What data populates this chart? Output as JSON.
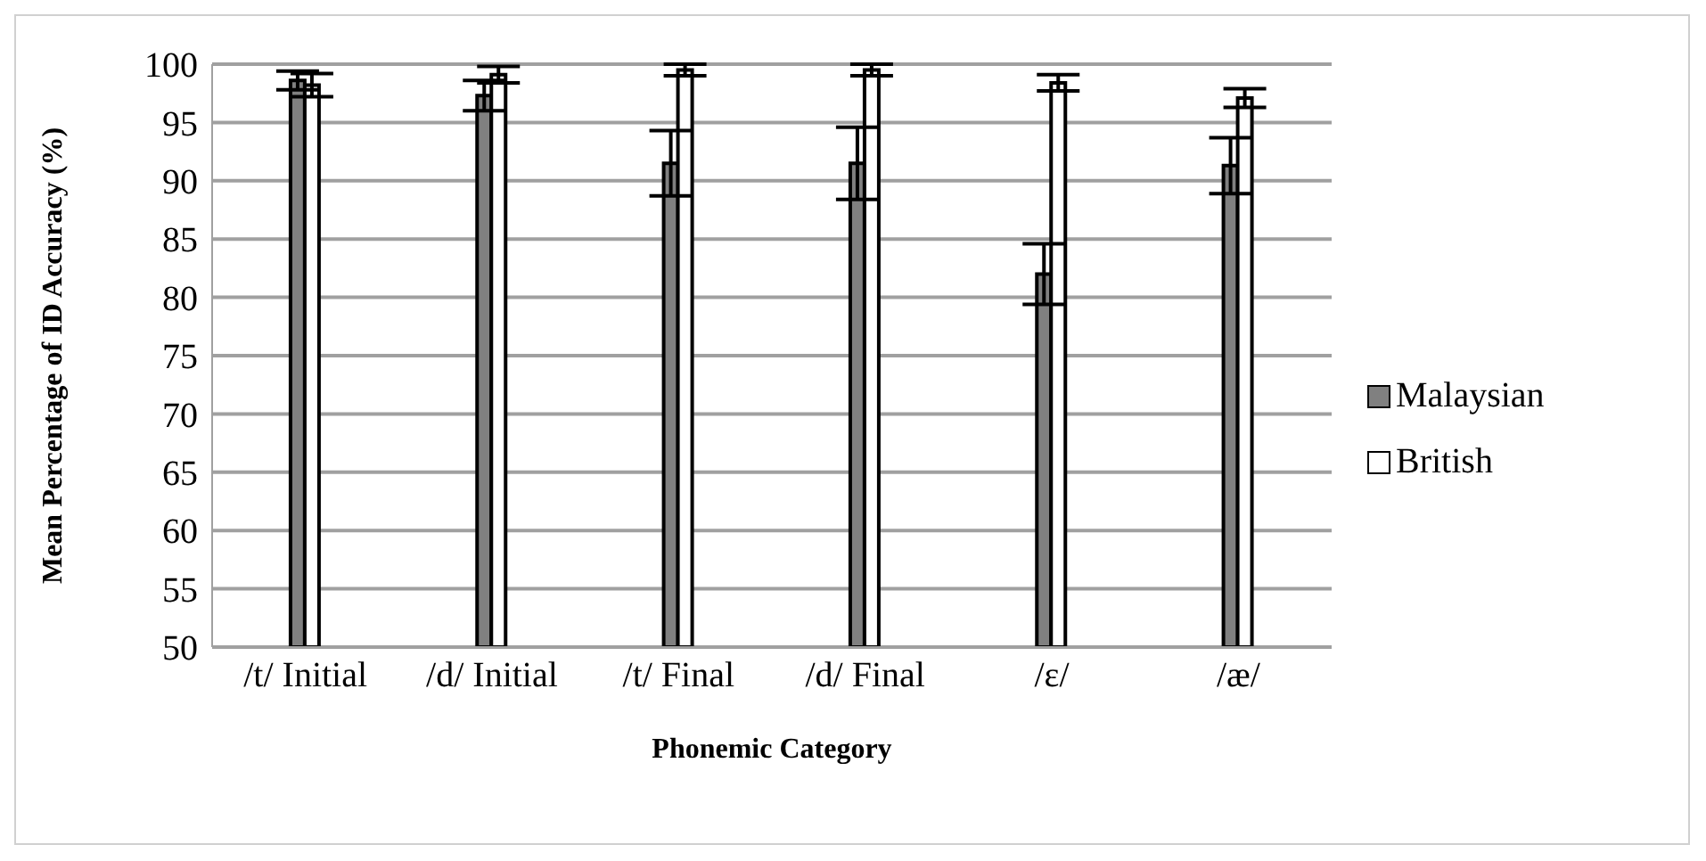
{
  "chart_data": {
    "type": "bar",
    "xlabel": "Phonemic Category",
    "ylabel": "Mean Percentage of ID Accuracy (%)",
    "categories": [
      "/t/ Initial",
      "/d/ Initial",
      "/t/ Final",
      "/d/ Final",
      "/ɛ/",
      "/æ/"
    ],
    "series": [
      {
        "name": "Malaysian",
        "color": "#808080",
        "values": [
          98.6,
          97.3,
          91.5,
          91.5,
          82.0,
          91.3
        ],
        "errors": [
          0.8,
          1.3,
          2.8,
          3.1,
          2.6,
          2.4
        ]
      },
      {
        "name": "British",
        "color": "#ffffff",
        "values": [
          98.2,
          99.1,
          99.5,
          99.5,
          98.4,
          97.1
        ],
        "errors": [
          1.0,
          0.7,
          0.5,
          0.5,
          0.7,
          0.8
        ]
      }
    ],
    "ylim": [
      50,
      100
    ],
    "yticks": [
      50,
      55,
      60,
      65,
      70,
      75,
      80,
      85,
      90,
      95,
      100
    ],
    "grid": "y",
    "legend": "right"
  }
}
